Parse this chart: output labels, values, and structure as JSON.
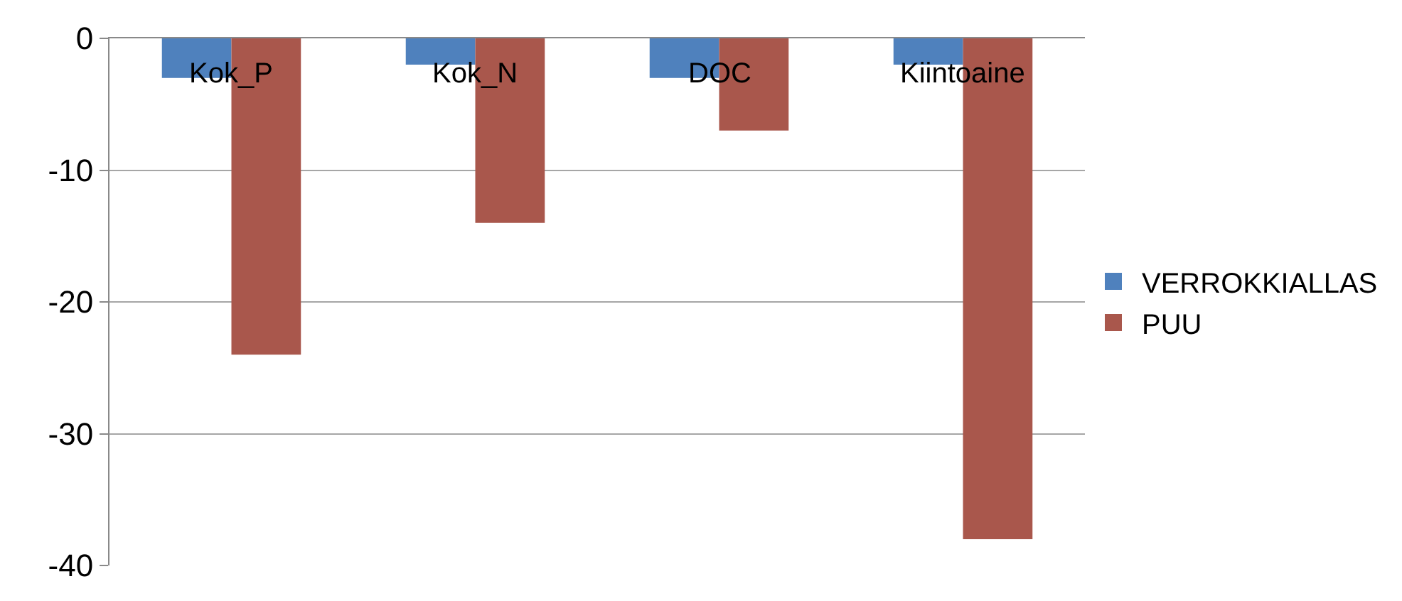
{
  "chart_data": {
    "type": "bar",
    "categories": [
      "Kok_P",
      "Kok_N",
      "DOC",
      "Kiintoaine"
    ],
    "series": [
      {
        "name": "VERROKKIALLAS",
        "color": "#4f81bd",
        "values": [
          -3,
          -2,
          -3,
          -2
        ]
      },
      {
        "name": "PUU",
        "color": "#a9574c",
        "values": [
          -24,
          -14,
          -7,
          -38
        ]
      }
    ],
    "ylim": [
      -40,
      0
    ],
    "yticks": [
      -40,
      -30,
      -20,
      -10,
      0
    ],
    "grid": "y",
    "legend": "right"
  }
}
